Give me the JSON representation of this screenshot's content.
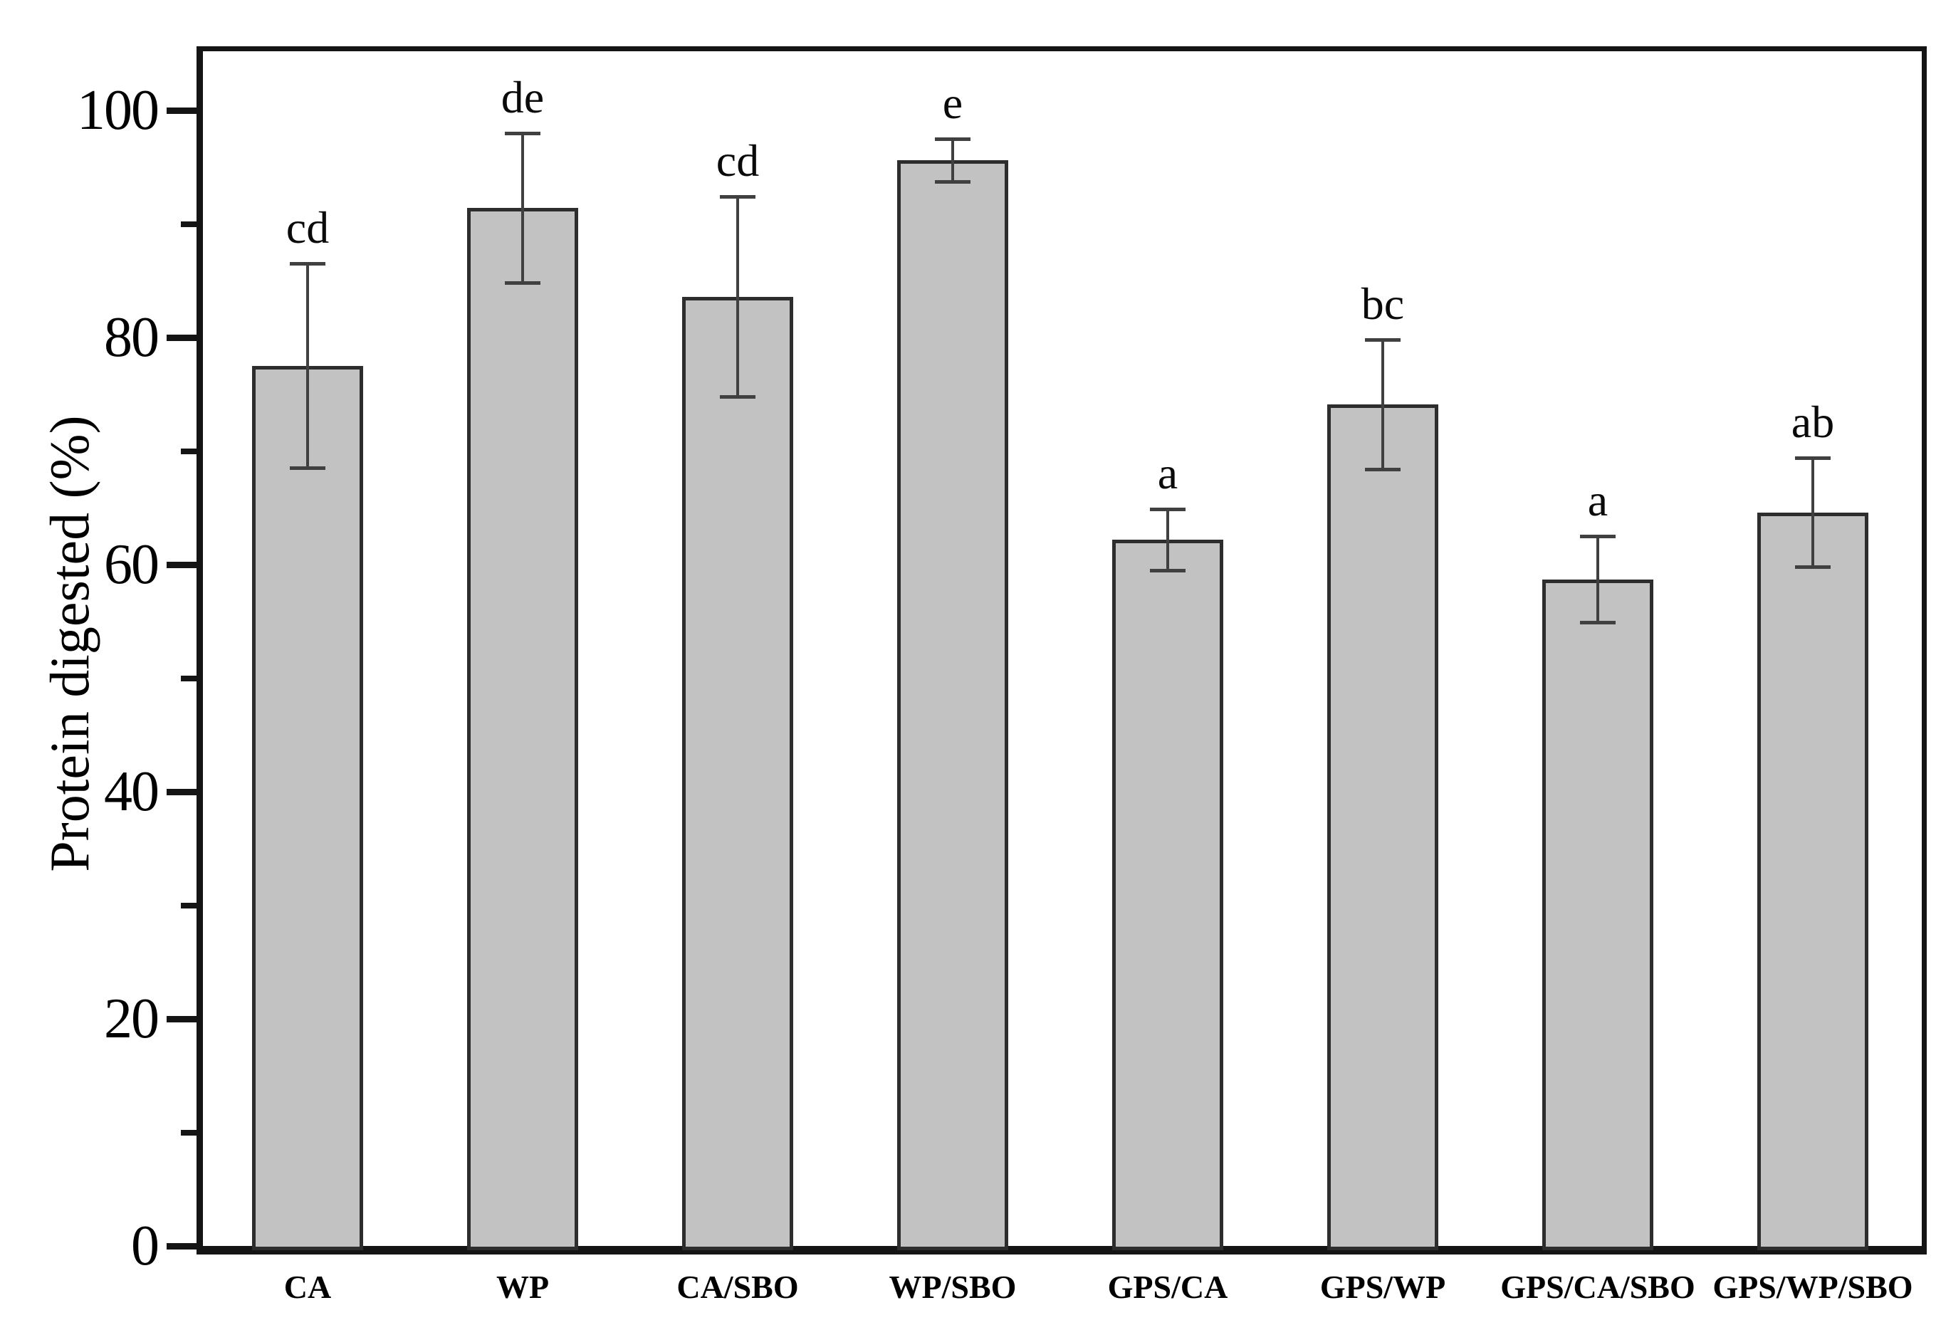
{
  "figure": {
    "y_axis_title": "Protein digested (%)"
  },
  "chart_data": {
    "type": "bar",
    "title": "",
    "xlabel": "",
    "ylabel": "Protein digested (%)",
    "categories": [
      "CA",
      "WP",
      "CA/SBO",
      "WP/SBO",
      "GPS/CA",
      "GPS/WP",
      "GPS/CA/SBO",
      "GPS/WP/SBO"
    ],
    "values": [
      77.5,
      91.4,
      83.6,
      95.6,
      62.2,
      74.1,
      58.7,
      64.6
    ],
    "error_bars": [
      9.0,
      6.6,
      8.8,
      1.9,
      2.7,
      5.7,
      3.8,
      4.8
    ],
    "significance_letters": [
      "cd",
      "de",
      "cd",
      "e",
      "a",
      "bc",
      "a",
      "ab"
    ],
    "ylim": [
      0,
      105.6
    ],
    "yticks_major": [
      0,
      20,
      40,
      60,
      80,
      100
    ],
    "ytick_labels": [
      "0",
      "20",
      "40",
      "60",
      "80",
      "100"
    ],
    "yticks_minor": [
      10,
      30,
      50,
      70,
      90
    ],
    "grid": false,
    "legend_position": "none",
    "bar_color": "#c2c2c2",
    "bar_edge_color": "#2d2d2d",
    "error_bar_color": "#404040",
    "frame_color": "#141414"
  }
}
